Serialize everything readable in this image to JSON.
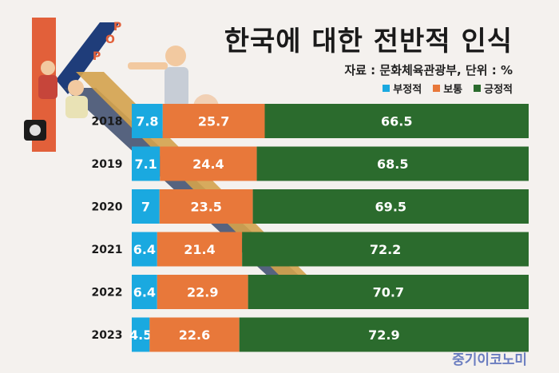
{
  "title": "한국에 대한 전반적 인식",
  "source": "자료 : 문화체육관광부, 단위 : %",
  "logo_text": "중기이코노미",
  "logo_art_text": "KPOP",
  "colors": {
    "negative": "#1aa9e0",
    "neutral": "#e8783a",
    "positive": "#2b6b2d",
    "label_text": "#ffffff",
    "background": "#f4f1ee"
  },
  "chart_data": {
    "type": "bar",
    "orientation": "horizontal",
    "stacked": true,
    "title": "한국에 대한 전반적 인식",
    "xlabel": "",
    "ylabel": "",
    "xlim": [
      0,
      100
    ],
    "legend_position": "top-right",
    "categories": [
      "2018",
      "2019",
      "2020",
      "2021",
      "2022",
      "2023"
    ],
    "series": [
      {
        "name": "부정적",
        "color": "#1aa9e0",
        "values": [
          7.8,
          7.1,
          7,
          6.4,
          6.4,
          4.5
        ]
      },
      {
        "name": "보통",
        "color": "#e8783a",
        "values": [
          25.7,
          24.4,
          23.5,
          21.4,
          22.9,
          22.6
        ]
      },
      {
        "name": "긍정적",
        "color": "#2b6b2d",
        "values": [
          66.5,
          68.5,
          69.5,
          72.2,
          70.7,
          72.9
        ]
      }
    ]
  }
}
